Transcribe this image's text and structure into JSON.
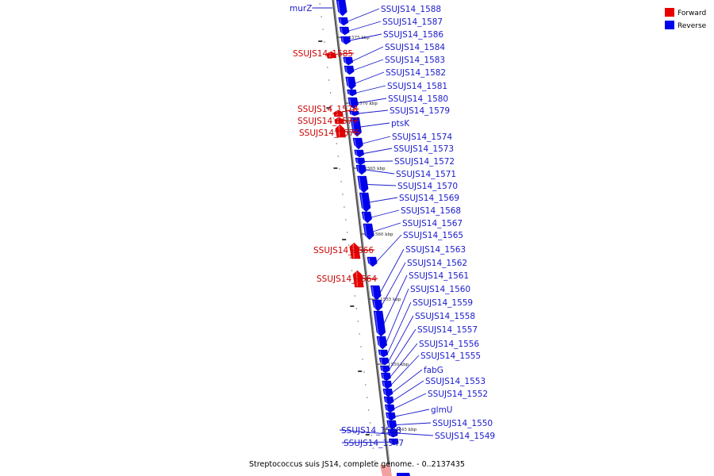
{
  "caption": "Streptococcus suis JS14, complete genome. - 0..2137435",
  "colors": {
    "forward": "#e80000",
    "reverse": "#0000ee",
    "label_forward": "#cc0000",
    "label_reverse": "#1a1acc",
    "axis": "#8a8a8a"
  },
  "legend": [
    {
      "key": "forward",
      "label": "Forward"
    },
    {
      "key": "reverse",
      "label": "Reverse"
    }
  ],
  "ticks": [
    "1575 kbp",
    "1570 kbp",
    "1565 kbp",
    "1560 kbp",
    "1555 kbp",
    "1550 kbp",
    "1545 kbp"
  ],
  "genes": [
    {
      "label": "murZ",
      "strand": "reverse"
    },
    {
      "label": "SSUJS14_1588",
      "strand": "reverse"
    },
    {
      "label": "SSUJS14_1587",
      "strand": "reverse"
    },
    {
      "label": "SSUJS14_1586",
      "strand": "reverse"
    },
    {
      "label": "SSUJS14_1585",
      "strand": "forward"
    },
    {
      "label": "SSUJS14_1584",
      "strand": "reverse"
    },
    {
      "label": "SSUJS14_1583",
      "strand": "reverse"
    },
    {
      "label": "SSUJS14_1582",
      "strand": "reverse"
    },
    {
      "label": "SSUJS14_1581",
      "strand": "reverse"
    },
    {
      "label": "SSUJS14_1580",
      "strand": "reverse"
    },
    {
      "label": "SSUJS14_1579",
      "strand": "reverse"
    },
    {
      "label": "SSUJS14_1578",
      "strand": "forward"
    },
    {
      "label": "SSUJS14_1577",
      "strand": "forward"
    },
    {
      "label": "ptsK",
      "strand": "reverse"
    },
    {
      "label": "SSUJS14_1576",
      "strand": "forward"
    },
    {
      "label": "SSUJS14_1574",
      "strand": "reverse"
    },
    {
      "label": "SSUJS14_1573",
      "strand": "reverse"
    },
    {
      "label": "SSUJS14_1572",
      "strand": "reverse"
    },
    {
      "label": "SSUJS14_1571",
      "strand": "reverse"
    },
    {
      "label": "SSUJS14_1570",
      "strand": "reverse"
    },
    {
      "label": "SSUJS14_1569",
      "strand": "reverse"
    },
    {
      "label": "SSUJS14_1568",
      "strand": "reverse"
    },
    {
      "label": "SSUJS14_1567",
      "strand": "reverse"
    },
    {
      "label": "SSUJS14_1565",
      "strand": "reverse"
    },
    {
      "label": "SSUJS14_1566",
      "strand": "forward"
    },
    {
      "label": "SSUJS14_1563",
      "strand": "reverse"
    },
    {
      "label": "SSUJS14_1562",
      "strand": "reverse"
    },
    {
      "label": "SSUJS14_1561",
      "strand": "reverse"
    },
    {
      "label": "SSUJS14_1564",
      "strand": "forward"
    },
    {
      "label": "SSUJS14_1560",
      "strand": "reverse"
    },
    {
      "label": "SSUJS14_1559",
      "strand": "reverse"
    },
    {
      "label": "SSUJS14_1558",
      "strand": "reverse"
    },
    {
      "label": "SSUJS14_1557",
      "strand": "reverse"
    },
    {
      "label": "SSUJS14_1556",
      "strand": "reverse"
    },
    {
      "label": "SSUJS14_1555",
      "strand": "reverse"
    },
    {
      "label": "fabG",
      "strand": "reverse"
    },
    {
      "label": "SSUJS14_1553",
      "strand": "reverse"
    },
    {
      "label": "SSUJS14_1552",
      "strand": "reverse"
    },
    {
      "label": "glmU",
      "strand": "reverse"
    },
    {
      "label": "SSUJS14_1550",
      "strand": "reverse"
    },
    {
      "label": "SSUJS14_1549",
      "strand": "reverse"
    },
    {
      "label": "SSUJS14_1548",
      "strand": "reverse"
    },
    {
      "label": "SSUJS14_1547",
      "strand": "reverse"
    }
  ]
}
